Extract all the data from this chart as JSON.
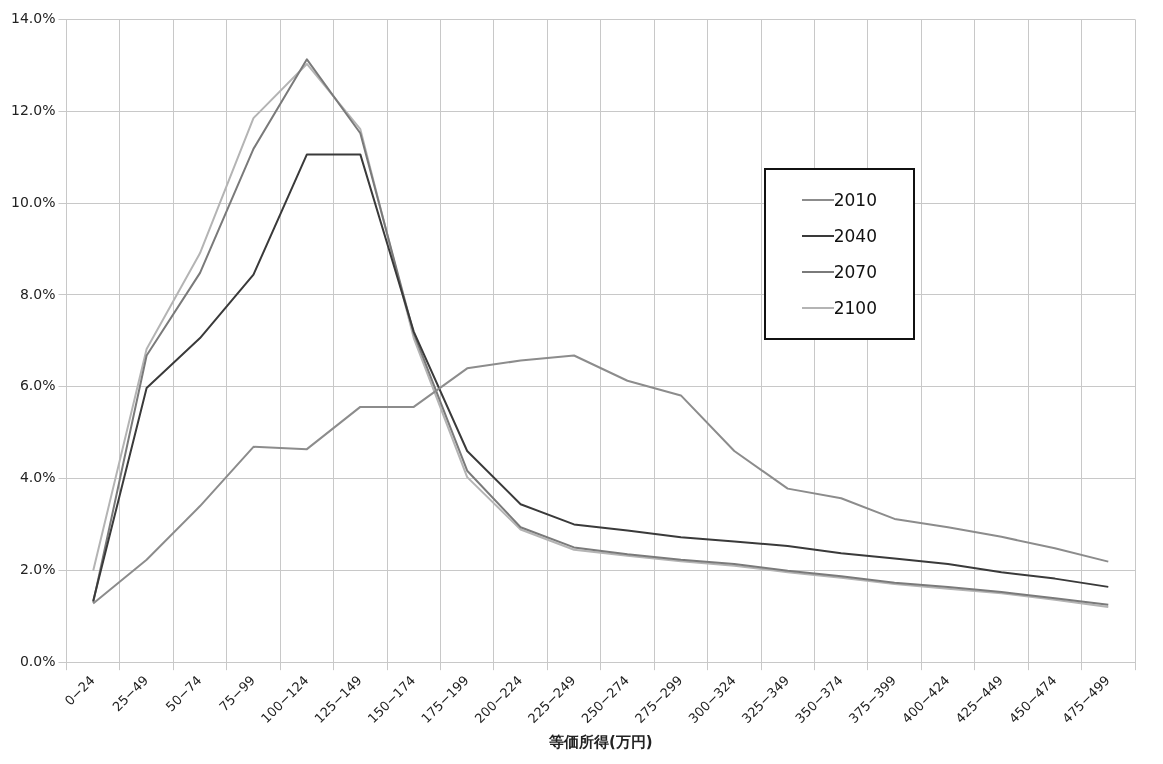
{
  "chart_data": {
    "type": "line",
    "xlabel": "等価所得(万円)",
    "categories": [
      "0−24",
      "25−49",
      "50−74",
      "75−99",
      "100−124",
      "125−149",
      "150−174",
      "175−199",
      "200−224",
      "225−249",
      "250−274",
      "275−299",
      "300−324",
      "325−349",
      "350−374",
      "375−399",
      "400−424",
      "425−449",
      "450−474",
      "475−499"
    ],
    "series": [
      {
        "name": "2010",
        "color": "#8c8c8c",
        "values": [
          1.28,
          2.23,
          3.4,
          4.69,
          4.64,
          5.56,
          5.56,
          6.4,
          6.57,
          6.68,
          6.13,
          5.81,
          4.6,
          3.78,
          3.57,
          3.12,
          2.94,
          2.73,
          2.48,
          2.19
        ]
      },
      {
        "name": "2040",
        "color": "#3a3a3a",
        "values": [
          1.33,
          5.97,
          7.06,
          8.44,
          11.06,
          11.06,
          7.2,
          4.6,
          3.44,
          3.0,
          2.87,
          2.72,
          2.63,
          2.53,
          2.37,
          2.26,
          2.14,
          1.96,
          1.82,
          1.64
        ]
      },
      {
        "name": "2070",
        "color": "#7a7a7a",
        "values": [
          1.3,
          6.68,
          8.48,
          11.18,
          13.13,
          11.52,
          7.16,
          4.17,
          2.94,
          2.5,
          2.35,
          2.23,
          2.14,
          1.99,
          1.87,
          1.73,
          1.64,
          1.53,
          1.39,
          1.25
        ]
      },
      {
        "name": "2100",
        "color": "#b4b4b4",
        "values": [
          1.99,
          6.82,
          8.91,
          11.85,
          13.03,
          11.61,
          7.06,
          4.03,
          2.89,
          2.45,
          2.32,
          2.2,
          2.1,
          1.96,
          1.84,
          1.7,
          1.6,
          1.5,
          1.36,
          1.2
        ]
      }
    ],
    "ylim": [
      0,
      14
    ],
    "yticks": [
      {
        "value": 0,
        "label": "0.0%"
      },
      {
        "value": 2,
        "label": "2.0%"
      },
      {
        "value": 4,
        "label": "4.0%"
      },
      {
        "value": 6,
        "label": "6.0%"
      },
      {
        "value": 8,
        "label": "8.0%"
      },
      {
        "value": 10,
        "label": "10.0%"
      },
      {
        "value": 12,
        "label": "12.0%"
      },
      {
        "value": 14,
        "label": "14.0%"
      }
    ],
    "grid": true,
    "legend": "top right",
    "marker": "none",
    "line_style": "solid"
  }
}
